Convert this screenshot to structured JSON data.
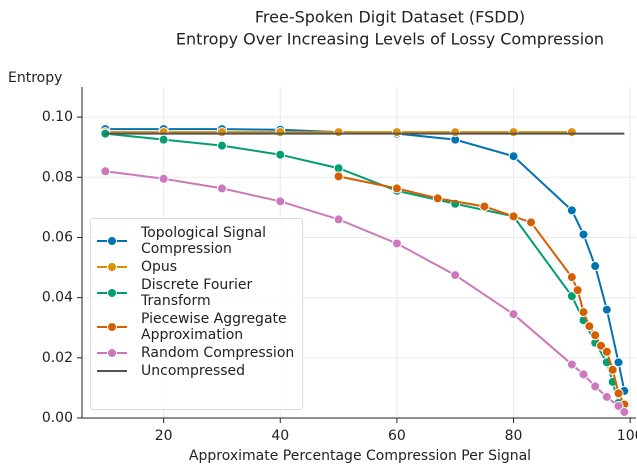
{
  "chart_data": {
    "type": "line",
    "title": "Free-Spoken Digit Dataset (FSDD)",
    "subtitle": "Entropy Over Increasing Levels of Lossy Compression",
    "x_label": "Approximate Percentage Compression Per Signal",
    "y_label": "Entropy",
    "xlim": [
      6,
      101
    ],
    "ylim": [
      0,
      0.11
    ],
    "xticks": [
      20,
      40,
      60,
      80,
      100
    ],
    "yticks": [
      {
        "value": 0,
        "label": "0.00"
      },
      {
        "value": 0.02,
        "label": "0.02"
      },
      {
        "value": 0.04,
        "label": "0.04"
      },
      {
        "value": 0.06,
        "label": "0.06"
      },
      {
        "value": 0.08,
        "label": "0.08"
      },
      {
        "value": 0.1,
        "label": "0.10"
      }
    ],
    "grid": true,
    "legend": "lower left",
    "series": [
      {
        "name": "Topological Signal Compression",
        "color": "#0173b2",
        "markers": true,
        "x": [
          10,
          20,
          30,
          40,
          50,
          60,
          70,
          80,
          90,
          92,
          94,
          96,
          98,
          99
        ],
        "values": [
          0.096,
          0.096,
          0.096,
          0.0958,
          0.095,
          0.0945,
          0.0925,
          0.087,
          0.069,
          0.061,
          0.0505,
          0.036,
          0.0185,
          0.009
        ]
      },
      {
        "name": "Opus",
        "color": "#de8f05",
        "markers": true,
        "x": [
          10,
          20,
          30,
          40,
          50,
          60,
          70,
          80,
          90
        ],
        "values": [
          0.095,
          0.095,
          0.095,
          0.095,
          0.095,
          0.095,
          0.095,
          0.095,
          0.095
        ]
      },
      {
        "name": "Discrete Fourier Transform",
        "color": "#029e73",
        "markers": true,
        "x": [
          10,
          20,
          30,
          40,
          50,
          60,
          70,
          80,
          90,
          92,
          94,
          96,
          97,
          98
        ],
        "values": [
          0.0945,
          0.0925,
          0.0905,
          0.0875,
          0.083,
          0.0755,
          0.0712,
          0.067,
          0.0405,
          0.0325,
          0.025,
          0.0185,
          0.012,
          0.005
        ]
      },
      {
        "name": "Piecewise Aggregate Approximation",
        "color": "#d55e00",
        "markers": true,
        "x": [
          50,
          60,
          67,
          75,
          80,
          83,
          90,
          91,
          92,
          93,
          94,
          95,
          96,
          97,
          98,
          99
        ],
        "values": [
          0.0803,
          0.0763,
          0.073,
          0.0703,
          0.067,
          0.065,
          0.0468,
          0.0425,
          0.0352,
          0.0305,
          0.0275,
          0.024,
          0.022,
          0.016,
          0.0082,
          0.0045
        ]
      },
      {
        "name": "Random Compression",
        "color": "#cc78bc",
        "markers": true,
        "x": [
          10,
          20,
          30,
          40,
          50,
          60,
          70,
          80,
          90,
          92,
          94,
          96,
          98,
          99
        ],
        "values": [
          0.082,
          0.0795,
          0.0763,
          0.072,
          0.066,
          0.058,
          0.0475,
          0.0345,
          0.0178,
          0.0145,
          0.0105,
          0.007,
          0.004,
          0.002
        ]
      },
      {
        "name": "Uncompressed",
        "color": "#555555",
        "markers": false,
        "x": [
          10,
          99
        ],
        "values": [
          0.0945,
          0.0945
        ]
      }
    ]
  }
}
